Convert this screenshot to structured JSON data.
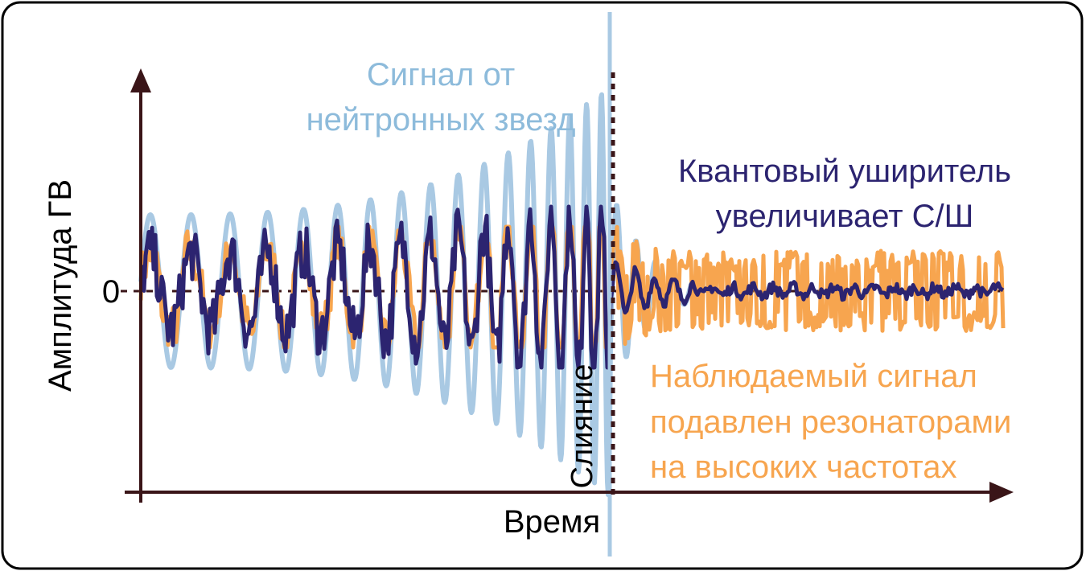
{
  "axes": {
    "y_label": "Амплитуда ГВ",
    "x_label": "Время",
    "zero_label": "0",
    "merger_label": "Слияние"
  },
  "annotations": {
    "ns_signal": [
      "Сигнал от",
      "нейтронных звезд"
    ],
    "squeezer": [
      "Квантовый уширитель",
      "увеличивает С/Ш"
    ],
    "observed": [
      "Наблюдаемый сигнал",
      "подавлен резонаторами",
      "на высоких частотах"
    ]
  },
  "colors": {
    "ns_signal": "#a9c9e3",
    "ns_text": "#8dbbdb",
    "observed": "#f7a54f",
    "squeezed": "#2c2470",
    "axis": "#3a1518"
  }
}
